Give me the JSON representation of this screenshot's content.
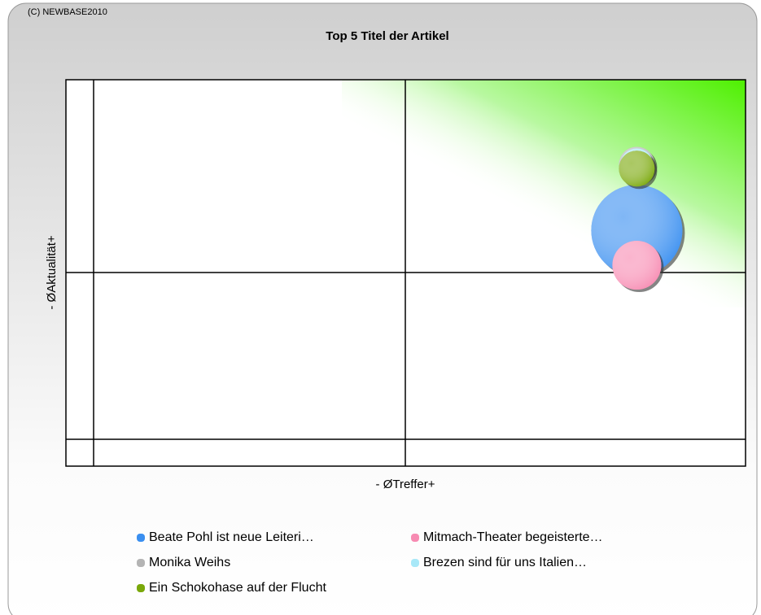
{
  "copyright": "(C) NEWBASE2010",
  "chart_data": {
    "type": "bubble",
    "title": "Top 5 Titel der Artikel",
    "x_label": "- ØTreffer+",
    "y_label": "- ØAktualität+",
    "xlim": [
      0,
      100
    ],
    "ylim": [
      0,
      100
    ],
    "series": [
      {
        "name": "Beate Pohl ist neue Leiteri…",
        "color": "#3a8ff0",
        "x": [
          84
        ],
        "values": [
          61
        ],
        "sizes": [
          56
        ]
      },
      {
        "name": "Mitmach-Theater begeisterte…",
        "color": "#f78bb2",
        "x": [
          84
        ],
        "values": [
          52
        ],
        "sizes": [
          30
        ]
      },
      {
        "name": "Monika Weihs",
        "color": "#b4b4b4",
        "x": [
          84
        ],
        "values": [
          78
        ],
        "sizes": [
          22
        ]
      },
      {
        "name": "Brezen sind für uns Italien…",
        "color": "#a8e8f8",
        "x": [
          84
        ],
        "values": [
          78
        ],
        "sizes": [
          20
        ]
      },
      {
        "name": "Ein Schokohase auf der Flucht",
        "color": "#7aa80a",
        "x": [
          84
        ],
        "values": [
          77
        ],
        "sizes": [
          22
        ]
      }
    ]
  }
}
